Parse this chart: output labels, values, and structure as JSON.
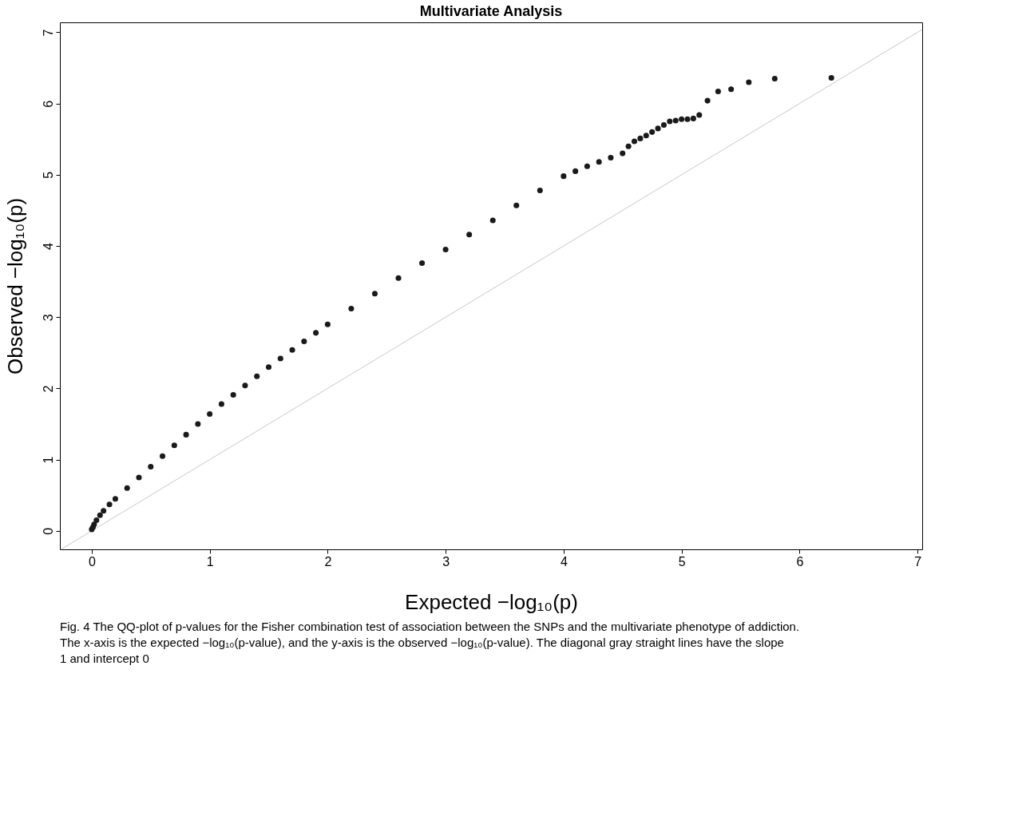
{
  "chart_data": {
    "type": "scatter",
    "title": "Multivariate Analysis",
    "xlabel": "Expected −log₁₀(p)",
    "ylabel": "Observed −log₁₀(p)",
    "xlim": [
      -0.27,
      7.04
    ],
    "ylim": [
      -0.26,
      7.14
    ],
    "xticks": [
      0,
      1,
      2,
      3,
      4,
      5,
      6,
      7
    ],
    "yticks": [
      0,
      1,
      2,
      3,
      4,
      5,
      6,
      7
    ],
    "grid": false,
    "series": [
      {
        "color": "#1a1a1a",
        "marker": "circle",
        "x": [
          0,
          0.01,
          0.02,
          0.04,
          0.07,
          0.1,
          0.15,
          0.2,
          0.3,
          0.4,
          0.5,
          0.6,
          0.7,
          0.8,
          0.9,
          1.0,
          1.1,
          1.2,
          1.3,
          1.4,
          1.5,
          1.6,
          1.7,
          1.8,
          1.9,
          2.0,
          2.2,
          2.4,
          2.6,
          2.8,
          3.0,
          3.2,
          3.4,
          3.6,
          3.8,
          4.0,
          4.1,
          4.2,
          4.3,
          4.4,
          4.5,
          4.55,
          4.6,
          4.65,
          4.7,
          4.75,
          4.8,
          4.85,
          4.9,
          4.95,
          5.0,
          5.05,
          5.1,
          5.15,
          5.22,
          5.31,
          5.42,
          5.57,
          5.79,
          6.27
        ],
        "values": [
          0.02,
          0.05,
          0.09,
          0.15,
          0.22,
          0.28,
          0.37,
          0.45,
          0.6,
          0.75,
          0.9,
          1.05,
          1.2,
          1.35,
          1.5,
          1.64,
          1.78,
          1.91,
          2.04,
          2.17,
          2.3,
          2.42,
          2.54,
          2.66,
          2.78,
          2.9,
          3.12,
          3.33,
          3.55,
          3.76,
          3.95,
          4.16,
          4.36,
          4.57,
          4.78,
          4.98,
          5.05,
          5.12,
          5.18,
          5.24,
          5.3,
          5.4,
          5.47,
          5.51,
          5.55,
          5.6,
          5.65,
          5.7,
          5.75,
          5.76,
          5.78,
          5.78,
          5.79,
          5.84,
          6.04,
          6.17,
          6.2,
          6.3,
          6.35,
          6.36
        ]
      },
      {
        "type": "line",
        "marker": "none",
        "color": "#c8c8c8",
        "x": [
          -0.26,
          7.04
        ],
        "values": [
          -0.26,
          7.04
        ]
      }
    ],
    "annotations": [
      "Fig. 4 The QQ-plot of p-values for the Fisher combination test of association between the SNPs and the multivariate phenotype of addiction. The x-axis is the expected −log₁₀(p-value), and the y-axis is the observed −log₁₀(p-value). The diagonal gray straight lines have the slope 1 and intercept 0"
    ]
  }
}
